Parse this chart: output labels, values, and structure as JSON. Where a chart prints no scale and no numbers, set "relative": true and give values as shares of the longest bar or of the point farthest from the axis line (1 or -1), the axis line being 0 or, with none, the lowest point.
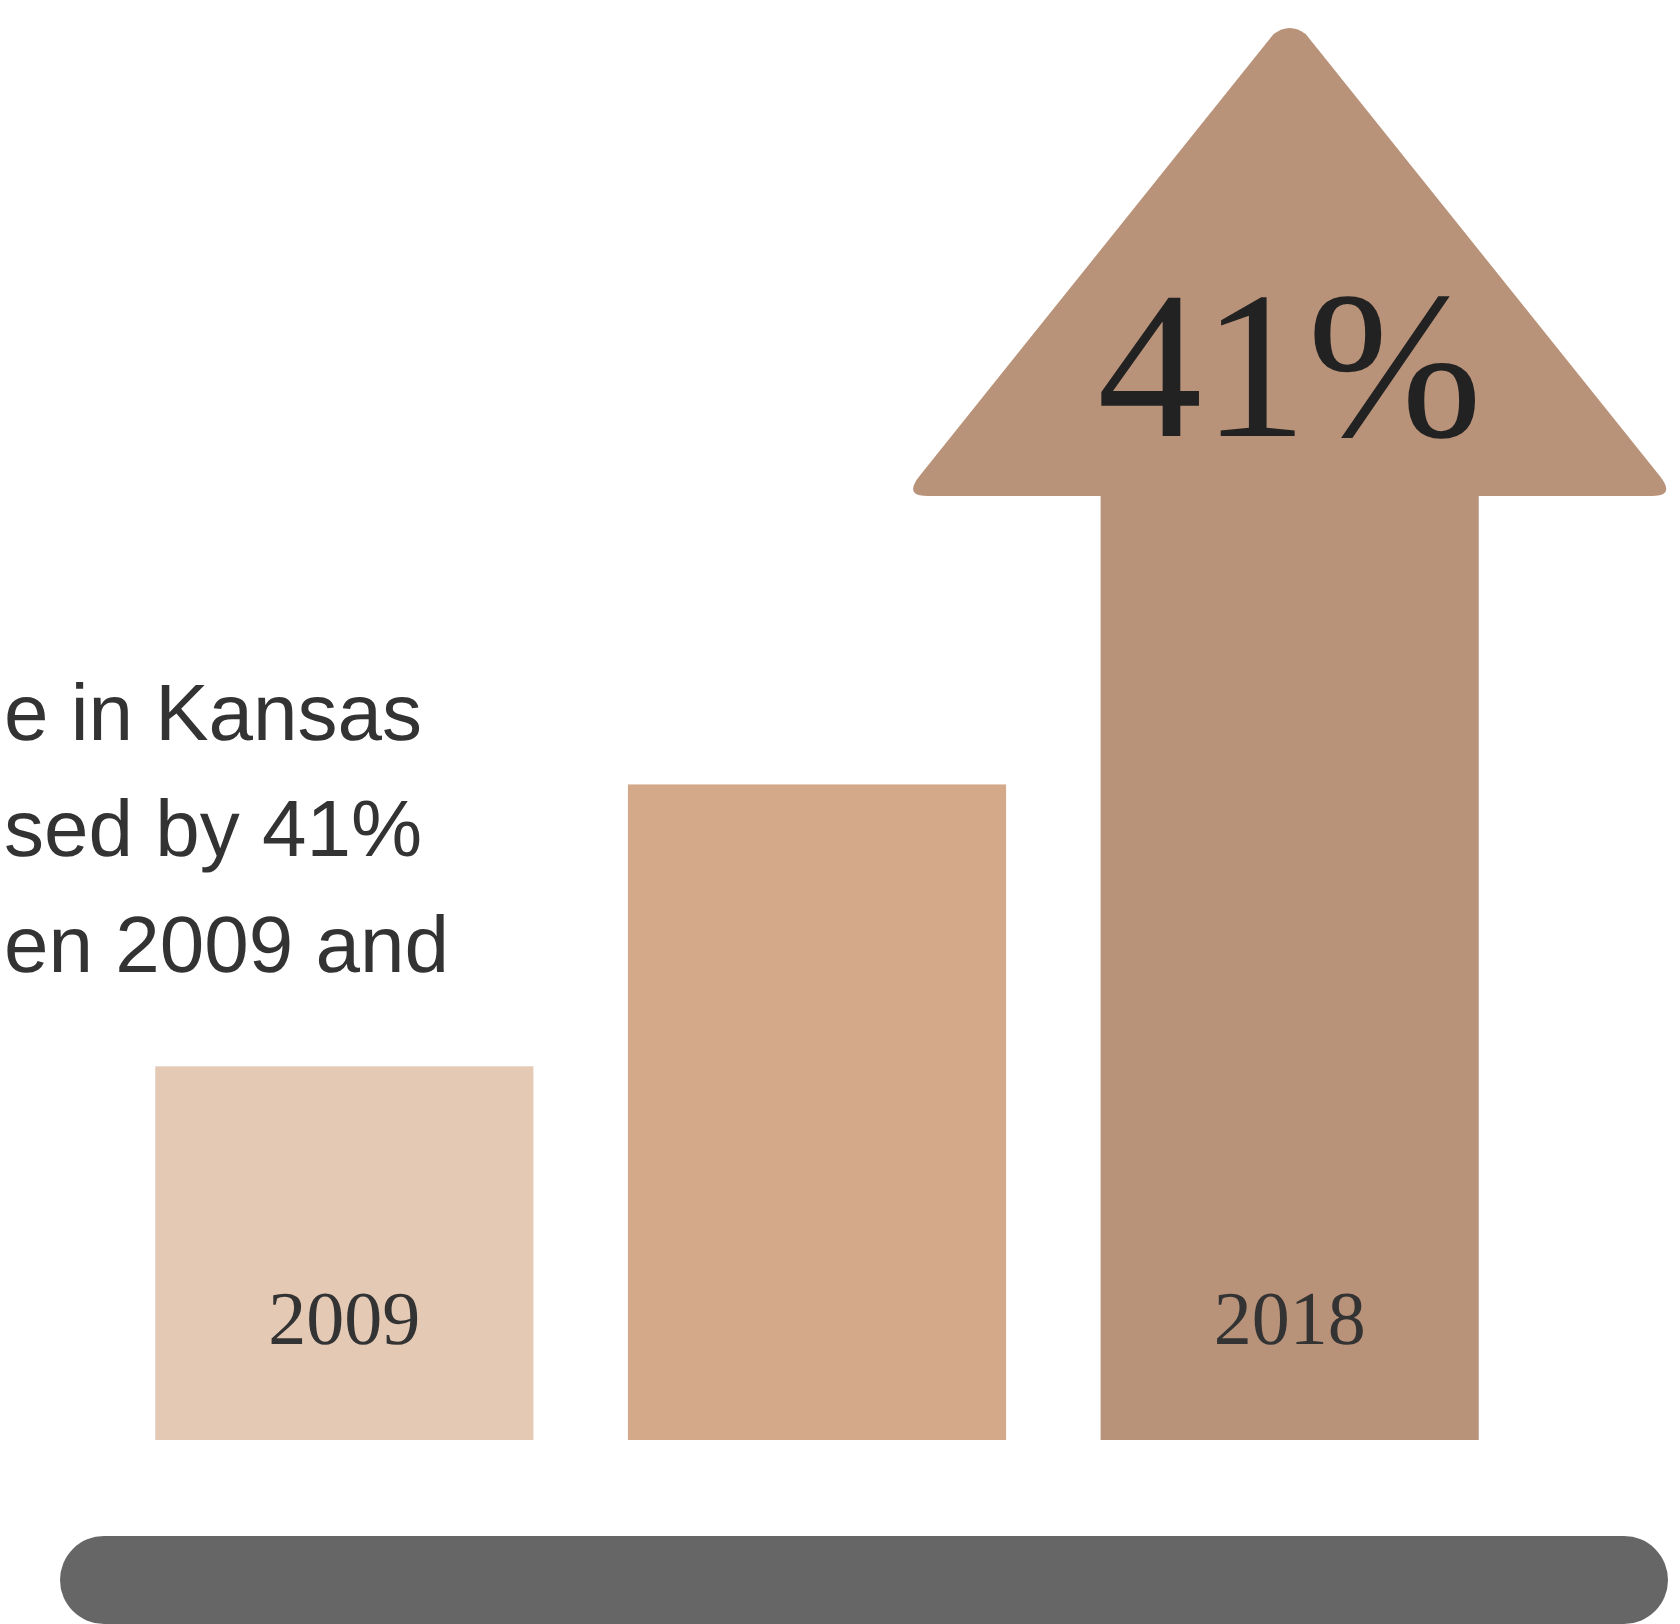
{
  "chart_data": {
    "type": "bar",
    "relative": true,
    "categories": [
      "2009",
      null,
      "2018"
    ],
    "values": [
      0.395,
      0.693,
      1
    ],
    "colors": [
      "#e4c9b5",
      "#d4a98a",
      "#b89279"
    ],
    "annotations": [
      "41%",
      "e in Kansas",
      "sed by 41%",
      "en 2009 and"
    ]
  }
}
